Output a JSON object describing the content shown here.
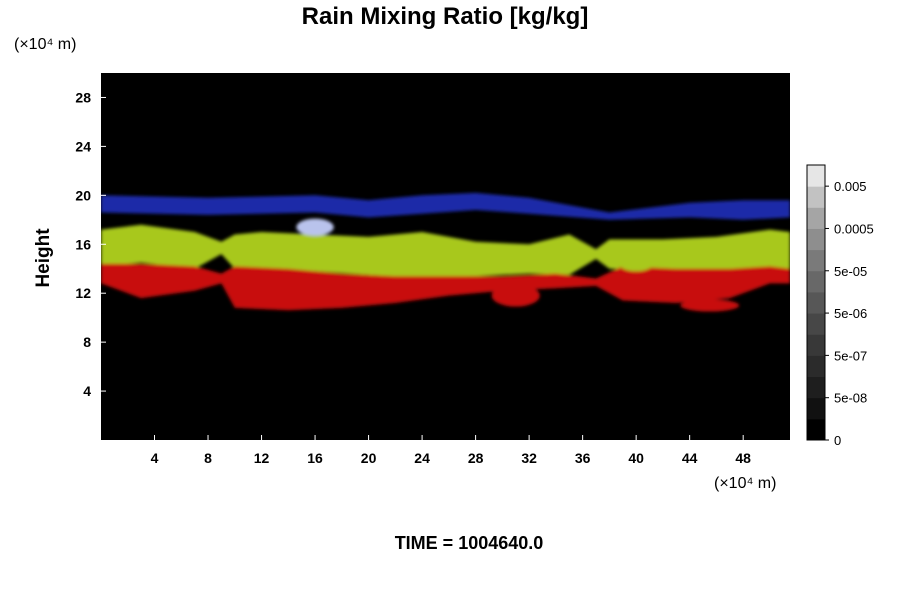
{
  "chart_data": {
    "type": "heatmap",
    "title": "Rain Mixing Ratio [kg/kg]",
    "ylabel": "Height",
    "y_unit": "(×10⁴ m)",
    "x_unit": "(×10⁴ m)",
    "footer": "TIME = 1004640.0",
    "xlim": [
      0,
      51.5
    ],
    "ylim": [
      0,
      30
    ],
    "x_ticks": [
      "4",
      "8",
      "12",
      "16",
      "20",
      "24",
      "28",
      "32",
      "36",
      "40",
      "44",
      "48"
    ],
    "y_ticks": [
      "4",
      "8",
      "12",
      "16",
      "20",
      "24",
      "28"
    ],
    "colorbar": {
      "labels": [
        "0",
        "5e-08",
        "5e-07",
        "5e-06",
        "5e-05",
        "0.0005",
        "0.005"
      ],
      "levels": 13,
      "colors": [
        "#000000",
        "#111111",
        "#1e1e1e",
        "#2b2b2b",
        "#383838",
        "#474747",
        "#575757",
        "#686868",
        "#7a7a7a",
        "#8e8e8e",
        "#a5a5a5",
        "#c2c2c2",
        "#e6e6e6"
      ]
    },
    "layers": [
      {
        "color": "#1e2aa8",
        "bands": [
          [
            0,
            18.6,
            20.0
          ],
          [
            8,
            18.4,
            19.8
          ],
          [
            16,
            18.6,
            20.0
          ],
          [
            20,
            18.2,
            19.6
          ],
          [
            24,
            18.5,
            20.0
          ],
          [
            28,
            18.8,
            20.2
          ],
          [
            32,
            18.5,
            19.8
          ],
          [
            38,
            18.0,
            18.6
          ],
          [
            44,
            18.2,
            19.4
          ],
          [
            48,
            18.0,
            19.6
          ],
          [
            51.5,
            18.2,
            19.6
          ]
        ]
      },
      {
        "color": "#a8c81a",
        "bands": [
          [
            0,
            14.2,
            17.2
          ],
          [
            3,
            14.5,
            17.6
          ],
          [
            7,
            14.0,
            17.0
          ],
          [
            9,
            15.2,
            16.2
          ],
          [
            10,
            14.0,
            16.8
          ],
          [
            12,
            13.8,
            17.0
          ],
          [
            16,
            13.8,
            16.8
          ],
          [
            20,
            13.5,
            16.6
          ],
          [
            24,
            13.2,
            17.0
          ],
          [
            28,
            13.4,
            16.2
          ],
          [
            32,
            13.6,
            16.0
          ],
          [
            35,
            13.5,
            16.8
          ],
          [
            37,
            14.8,
            15.6
          ],
          [
            38,
            14.0,
            16.4
          ],
          [
            42,
            13.8,
            16.4
          ],
          [
            46,
            13.8,
            16.6
          ],
          [
            50,
            14.0,
            17.2
          ],
          [
            51.5,
            14.0,
            17.0
          ]
        ]
      },
      {
        "color": "#c8100e",
        "bands": [
          [
            0,
            12.8,
            14.4
          ],
          [
            3,
            11.6,
            14.4
          ],
          [
            7,
            12.2,
            14.2
          ],
          [
            9,
            12.8,
            13.6
          ],
          [
            10,
            10.8,
            14.2
          ],
          [
            14,
            10.6,
            14.0
          ],
          [
            18,
            10.8,
            13.6
          ],
          [
            22,
            11.2,
            13.4
          ],
          [
            26,
            11.8,
            13.4
          ],
          [
            30,
            12.2,
            13.4
          ],
          [
            34,
            12.4,
            13.6
          ],
          [
            37,
            12.6,
            13.2
          ],
          [
            39,
            11.4,
            14.2
          ],
          [
            43,
            11.2,
            14.0
          ],
          [
            47,
            11.6,
            14.0
          ],
          [
            50,
            12.8,
            14.2
          ],
          [
            51.5,
            12.8,
            14.0
          ]
        ]
      }
    ],
    "blobs": [
      {
        "x": 31.0,
        "y": 11.8,
        "rx": 1.8,
        "ry": 0.9,
        "color": "#c8100e"
      },
      {
        "x": 45.5,
        "y": 11.0,
        "rx": 2.2,
        "ry": 0.5,
        "color": "#c8100e"
      },
      {
        "x": 16.0,
        "y": 17.4,
        "rx": 1.4,
        "ry": 0.7,
        "color": "#b9c3ec"
      },
      {
        "x": 40.0,
        "y": 14.3,
        "rx": 1.2,
        "ry": 0.5,
        "color": "#a8c81a"
      }
    ]
  }
}
